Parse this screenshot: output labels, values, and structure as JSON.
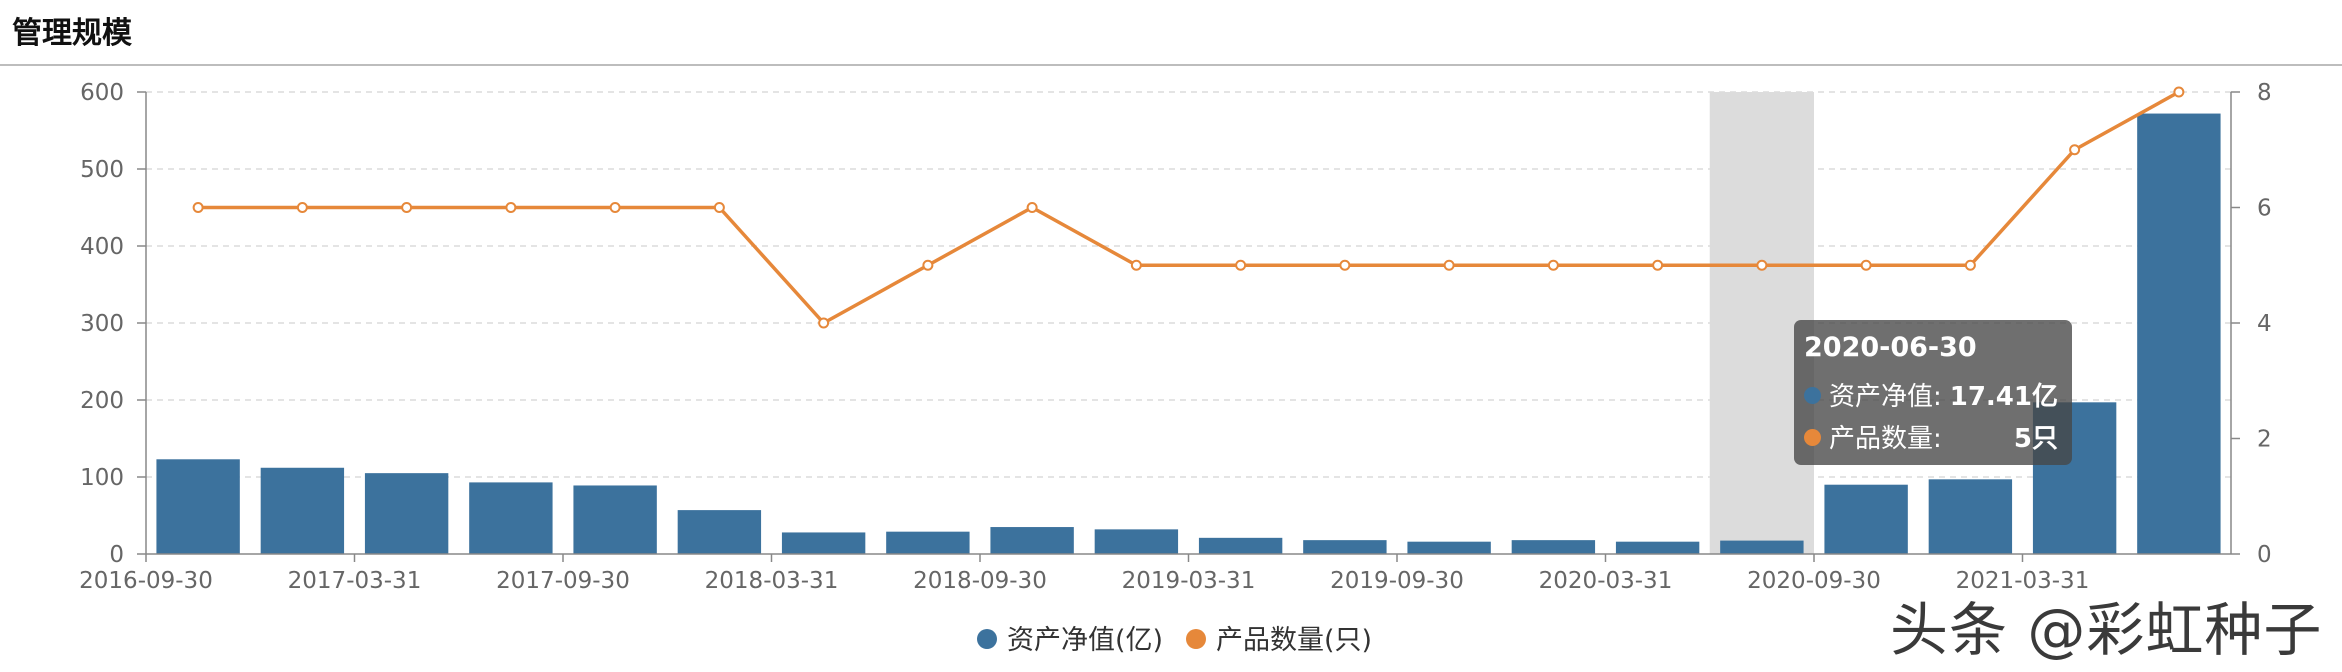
{
  "page": {
    "title": "管理规模",
    "watermark": "头条 @彩虹种子"
  },
  "colors": {
    "bar": "#3c729d",
    "line": "#e6883a",
    "grid": "#dcdcdc",
    "axis_text": "#666666",
    "highlight_band": "#dcdcdc"
  },
  "tooltip": {
    "date": "2020-06-30",
    "rows": [
      {
        "label": "资产净值:",
        "value": "17.41亿"
      },
      {
        "label": "产品数量:",
        "value": "5只"
      }
    ]
  },
  "chart_data": {
    "type": "bar",
    "categories": [
      "2016-09-30",
      "2016-12-31",
      "2017-03-31",
      "2017-06-30",
      "2017-09-30",
      "2017-12-31",
      "2018-03-31",
      "2018-06-30",
      "2018-09-30",
      "2018-12-31",
      "2019-03-31",
      "2019-06-30",
      "2019-09-30",
      "2019-12-31",
      "2020-03-31",
      "2020-06-30",
      "2020-09-30",
      "2020-12-31",
      "2021-03-31",
      "2021-06-30"
    ],
    "x_tick_labels": [
      "2016-09-30",
      "2017-03-31",
      "2017-09-30",
      "2018-03-31",
      "2018-09-30",
      "2019-03-31",
      "2019-09-30",
      "2020-03-31",
      "2020-09-30",
      "2021-03-31"
    ],
    "series": [
      {
        "name": "资产净值(亿)",
        "type": "bar",
        "axis": "left",
        "values": [
          123,
          112,
          105,
          93,
          89,
          57,
          28,
          29,
          35,
          32,
          21,
          18,
          16,
          18,
          16,
          17.41,
          90,
          97,
          197,
          572
        ]
      },
      {
        "name": "产品数量(只)",
        "type": "line",
        "axis": "right",
        "values": [
          6,
          6,
          6,
          6,
          6,
          6,
          4,
          5,
          6,
          5,
          5,
          5,
          5,
          5,
          5,
          5,
          5,
          5,
          7,
          8
        ]
      }
    ],
    "y_left": {
      "ticks": [
        "0",
        "100",
        "200",
        "300",
        "400",
        "500",
        "600"
      ],
      "range": [
        0,
        600
      ]
    },
    "y_right": {
      "ticks": [
        "0",
        "2",
        "4",
        "6",
        "8"
      ],
      "range": [
        0,
        8
      ]
    },
    "highlight_category": "2020-06-30",
    "legend": [
      {
        "label": "资产净值(亿)"
      },
      {
        "label": "产品数量(只)"
      }
    ],
    "legend_position": "bottom-center",
    "grid": "horizontal-dashed"
  }
}
